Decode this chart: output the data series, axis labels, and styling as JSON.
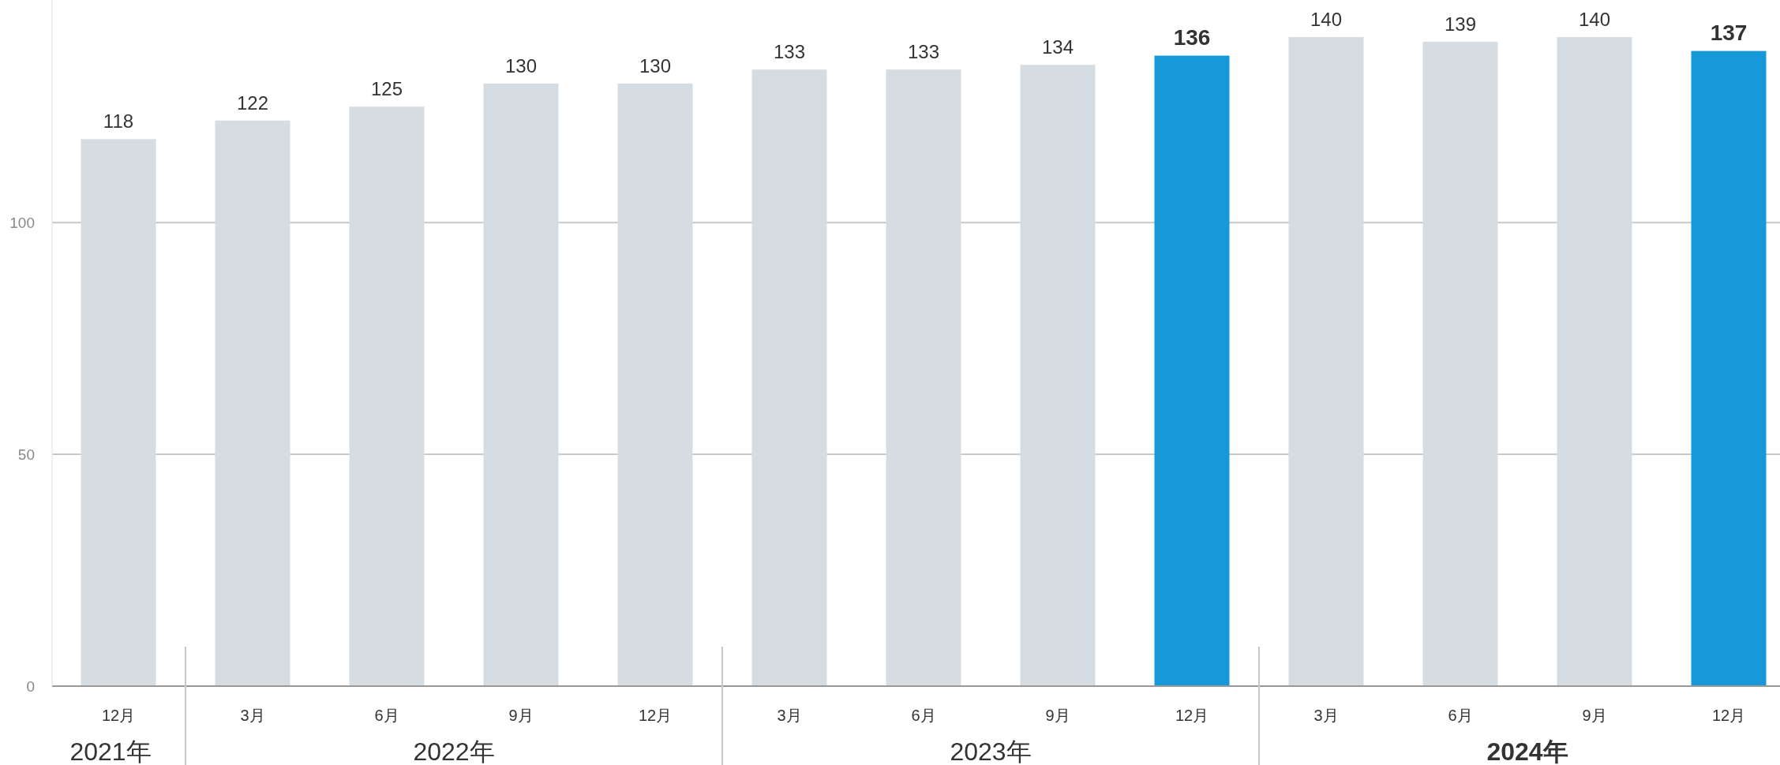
{
  "chart_data": {
    "type": "bar",
    "categories": [
      "12月",
      "3月",
      "6月",
      "9月",
      "12月",
      "3月",
      "6月",
      "9月",
      "12月",
      "3月",
      "6月",
      "9月",
      "12月"
    ],
    "values": [
      118,
      122,
      125,
      130,
      130,
      133,
      133,
      134,
      136,
      140,
      139,
      140,
      137
    ],
    "colors": [
      "#d5dde3",
      "#d5dde3",
      "#d5dde3",
      "#d5dde3",
      "#d5dde3",
      "#d5dde3",
      "#d5dde3",
      "#d5dde3",
      "#1798d8",
      "#d5dde3",
      "#d5dde3",
      "#d5dde3",
      "#1798d8"
    ],
    "ylim": [
      0,
      148
    ],
    "yticks": [
      0,
      50,
      100
    ],
    "grid": "y",
    "data_labels": true,
    "annotations": [
      "2021年",
      "2022年",
      "2023年",
      "**2024年**"
    ]
  }
}
